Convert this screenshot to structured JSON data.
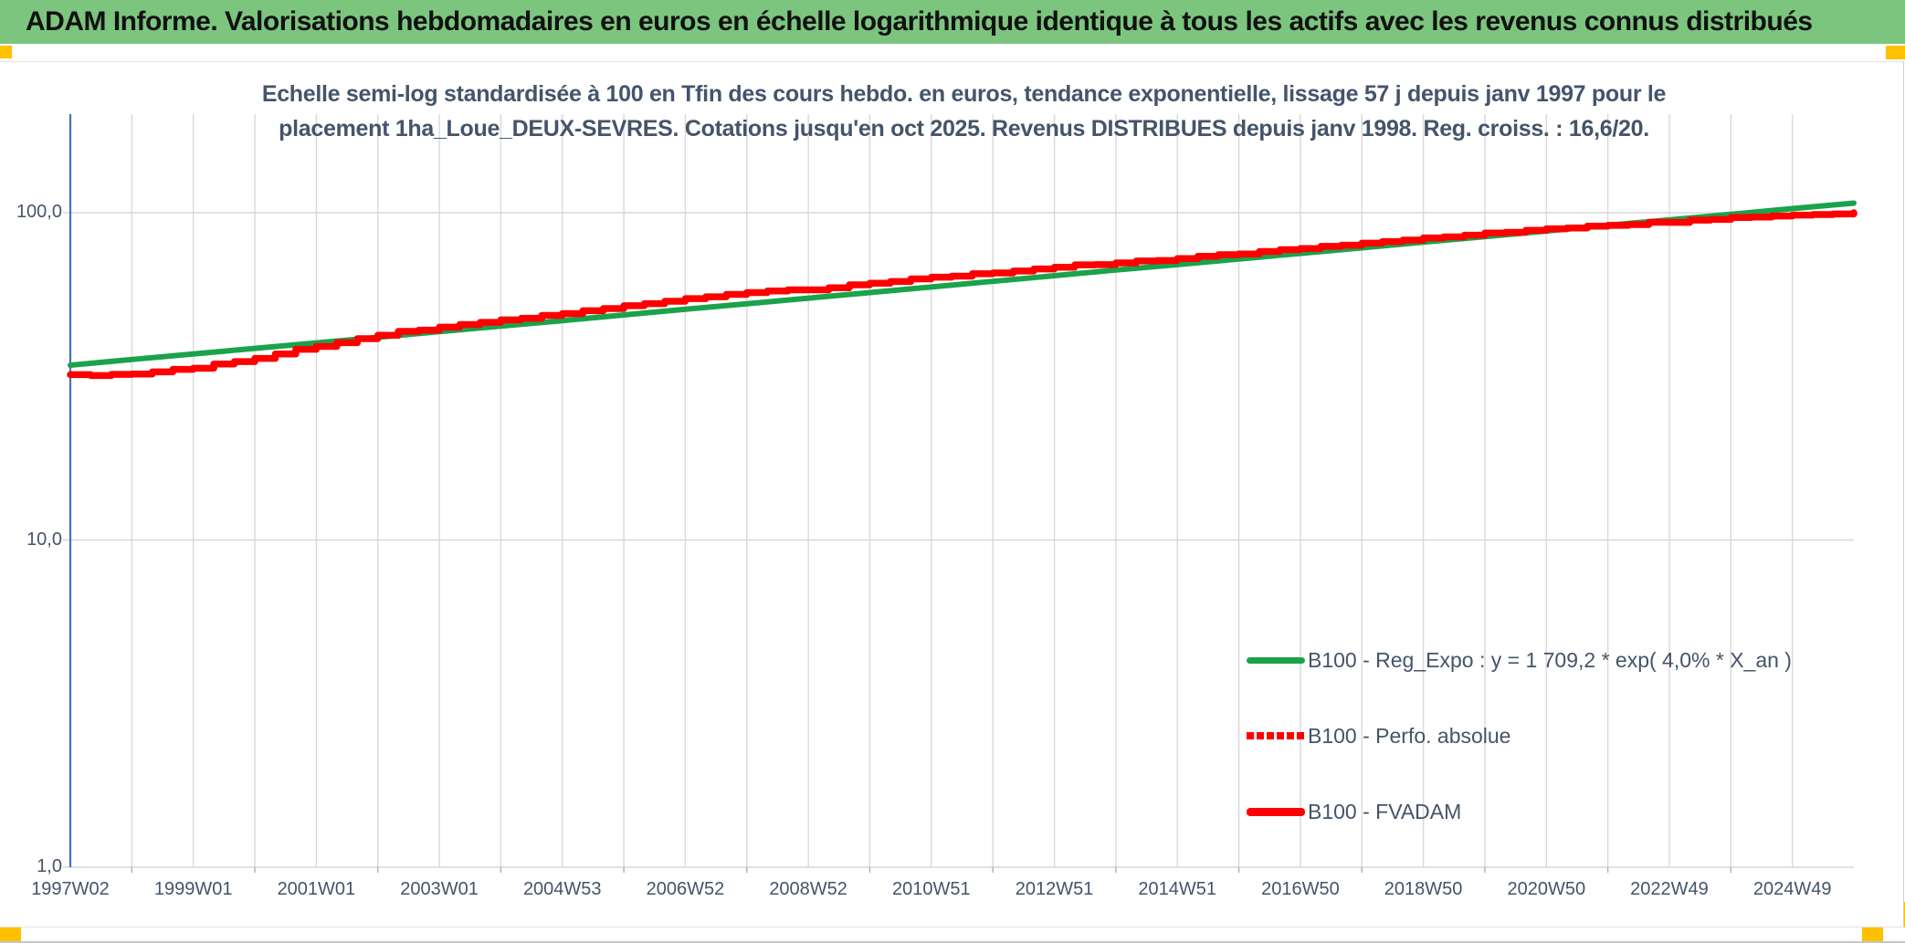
{
  "header": {
    "title": "ADAM Informe. Valorisations hebdomadaires en euros en échelle logarithmique identique à tous les actifs avec les revenus connus distribués",
    "bg_color": "#7cc57e",
    "corner_marker_color": "#ffc000"
  },
  "subtitle": {
    "line1": "Echelle semi-log standardisée à 100 en Tfin des cours hebdo. en euros, tendance exponentielle, lissage 57 j depuis janv 1997 pour le",
    "line2": "placement 1ha_Loue_DEUX-SEVRES. Cotations jusqu'en oct 2025. Revenus DISTRIBUES depuis janv 1998. Reg. croiss. : 16,6/20."
  },
  "chart_data": {
    "type": "line",
    "y_scale": "log",
    "ylim": [
      1,
      200
    ],
    "y_tick_labels": [
      "100,0",
      "10,0",
      "1,0"
    ],
    "y_tick_values": [
      100,
      10,
      1
    ],
    "x_tick_labels": [
      "1997W02",
      "1999W01",
      "2001W01",
      "2003W01",
      "2004W53",
      "2006W52",
      "2008W52",
      "2010W51",
      "2012W51",
      "2014W51",
      "2016W50",
      "2018W50",
      "2020W50",
      "2022W49",
      "2024W49"
    ],
    "x_year_start": 1997,
    "x_year_end": 2026,
    "grid": {
      "vertical": "yearly",
      "horizontal": "decades",
      "color": "#d9d9d9"
    },
    "axis_color": "#4472c4",
    "legend_position": "inside-lower-right",
    "series": [
      {
        "name": "B100 - Reg_Expo : y = 1 709,2 * exp( 4,0% *  X_an )",
        "color": "#1aa34a",
        "style": "solid",
        "shape": "straight",
        "years": [
          1997,
          1998,
          1999,
          2000,
          2001,
          2002,
          2003,
          2004,
          2005,
          2006,
          2007,
          2008,
          2009,
          2010,
          2011,
          2012,
          2013,
          2014,
          2015,
          2016,
          2017,
          2018,
          2019,
          2020,
          2021,
          2022,
          2023,
          2024,
          2025,
          2026
        ],
        "values": [
          34.2,
          35.6,
          37.0,
          38.5,
          40.0,
          41.6,
          43.3,
          45.0,
          46.8,
          48.7,
          50.7,
          52.7,
          54.8,
          57.0,
          59.3,
          61.7,
          64.2,
          66.8,
          69.4,
          72.2,
          75.1,
          78.1,
          81.3,
          84.5,
          87.9,
          91.5,
          95.1,
          98.9,
          102.9,
          107.0
        ]
      },
      {
        "name": "B100 - Perfo. absolue",
        "color": "#fe0000",
        "style": "dotted",
        "shape": "step",
        "years": [
          1997,
          1998,
          1999,
          2000,
          2001,
          2002,
          2003,
          2004,
          2005,
          2006,
          2007,
          2008,
          2009,
          2010,
          2011,
          2012,
          2013,
          2014,
          2015,
          2016,
          2017,
          2018,
          2019,
          2020,
          2021,
          2022,
          2023,
          2024,
          2025,
          2026
        ],
        "values": [
          31.9,
          32.0,
          33.6,
          36.0,
          39.2,
          42.4,
          44.8,
          47.0,
          49.4,
          51.8,
          54.4,
          56.9,
          58.4,
          60.9,
          63.5,
          65.5,
          68.4,
          70.3,
          72.5,
          75.0,
          77.7,
          80.7,
          83.6,
          86.5,
          89.1,
          91.6,
          93.9,
          96.3,
          98.3,
          100.0
        ]
      },
      {
        "name": "B100 - FVADAM",
        "color": "#fe0000",
        "style": "solid",
        "shape": "step",
        "years": [
          1997,
          1998,
          1999,
          2000,
          2001,
          2002,
          2003,
          2004,
          2005,
          2006,
          2007,
          2008,
          2009,
          2010,
          2011,
          2012,
          2013,
          2014,
          2015,
          2016,
          2017,
          2018,
          2019,
          2020,
          2021,
          2022,
          2023,
          2024,
          2025,
          2026
        ],
        "values": [
          31.9,
          32.0,
          33.6,
          36.0,
          39.2,
          42.4,
          44.8,
          47.0,
          49.4,
          51.8,
          54.4,
          56.9,
          58.4,
          60.9,
          63.5,
          65.5,
          68.4,
          70.3,
          72.5,
          75.0,
          77.7,
          80.7,
          83.6,
          86.5,
          89.1,
          91.6,
          93.9,
          96.3,
          98.3,
          100.0
        ]
      }
    ]
  }
}
